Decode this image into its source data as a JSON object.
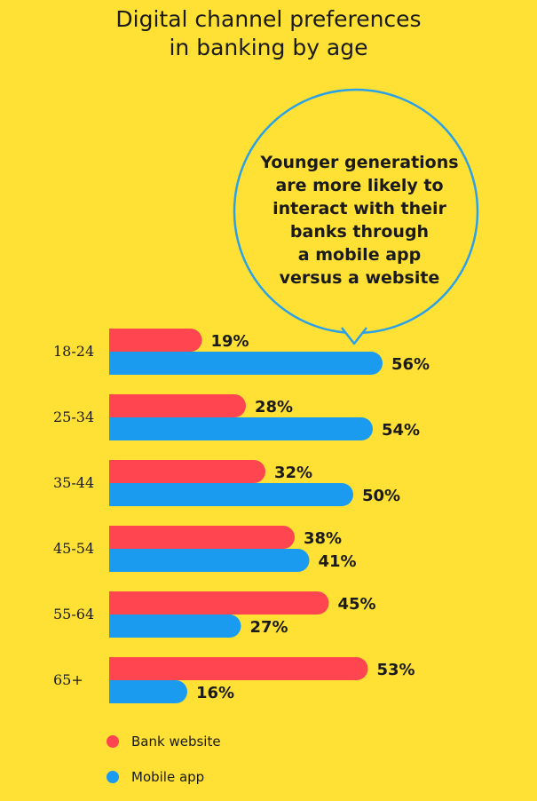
{
  "title": [
    "Digital channel preferences",
    "in banking by age"
  ],
  "callout": [
    "Younger generations",
    "are more likely to",
    "interact with their",
    "banks through",
    "a mobile app",
    "versus a website"
  ],
  "colors": {
    "background": "#ffe135",
    "bank_website": "#ff4550",
    "mobile_app": "#1a9bf0",
    "callout_border": "#2aa0e8"
  },
  "legend": [
    {
      "name": "Bank website",
      "color": "#ff4550"
    },
    {
      "name": "Mobile app",
      "color": "#1a9bf0"
    }
  ],
  "chart_data": {
    "type": "bar",
    "orientation": "horizontal",
    "categories": [
      "18-24",
      "25-34",
      "35-44",
      "45-54",
      "55-64",
      "65+"
    ],
    "series": [
      {
        "name": "Bank website",
        "values": [
          19,
          28,
          32,
          38,
          45,
          53
        ]
      },
      {
        "name": "Mobile app",
        "values": [
          56,
          54,
          50,
          41,
          27,
          16
        ]
      }
    ],
    "value_suffix": "%",
    "title": "Digital channel preferences in banking by age",
    "legend_position": "bottom-left",
    "grid": false
  }
}
